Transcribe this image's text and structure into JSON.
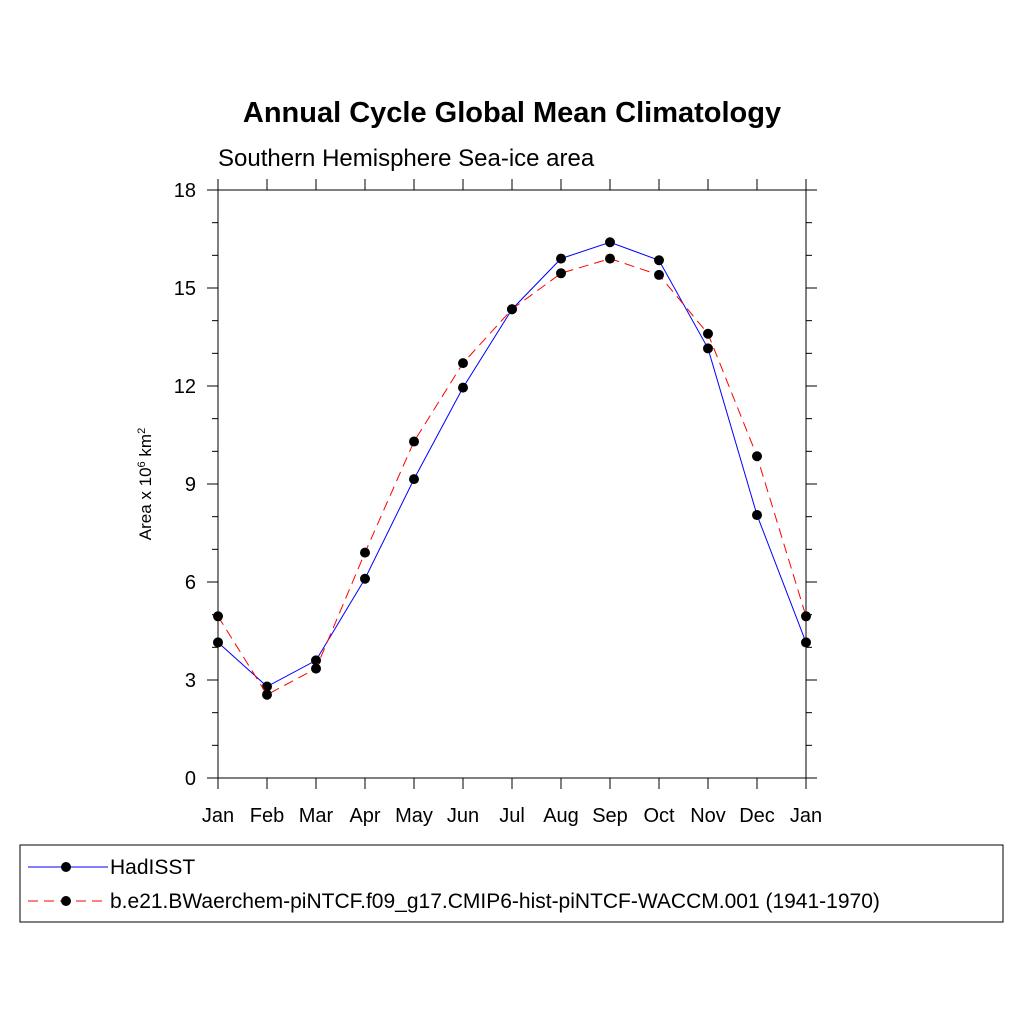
{
  "chart_data": {
    "type": "line",
    "title": "Annual Cycle Global Mean Climatology",
    "subtitle": "Southern Hemisphere Sea-ice area",
    "ylabel": {
      "prefix": "Area x 10",
      "exp1": "6",
      "mid": " km",
      "exp2": "2"
    },
    "xlabel": "",
    "categories": [
      "Jan",
      "Feb",
      "Mar",
      "Apr",
      "May",
      "Jun",
      "Jul",
      "Aug",
      "Sep",
      "Oct",
      "Nov",
      "Dec",
      "Jan"
    ],
    "ylim": [
      0,
      18
    ],
    "yticks": [
      0,
      3,
      6,
      9,
      12,
      15,
      18
    ],
    "grid": false,
    "legend_position": "bottom",
    "series": [
      {
        "name": "HadISST",
        "color": "#0000ff",
        "dash": "solid",
        "marker": "filled-circle",
        "values": [
          4.15,
          2.8,
          3.6,
          6.1,
          9.15,
          11.95,
          14.35,
          15.9,
          16.4,
          15.85,
          13.15,
          8.05,
          4.15
        ]
      },
      {
        "name": "b.e21.BWaerchem-piNTCF.f09_g17.CMIP6-hist-piNTCF-WACCM.001 (1941-1970)",
        "color": "#ff0000",
        "dash": "dashed",
        "marker": "filled-circle",
        "values": [
          4.95,
          2.55,
          3.35,
          6.9,
          10.3,
          12.7,
          14.35,
          15.45,
          15.9,
          15.4,
          13.6,
          9.85,
          4.95
        ]
      }
    ]
  }
}
